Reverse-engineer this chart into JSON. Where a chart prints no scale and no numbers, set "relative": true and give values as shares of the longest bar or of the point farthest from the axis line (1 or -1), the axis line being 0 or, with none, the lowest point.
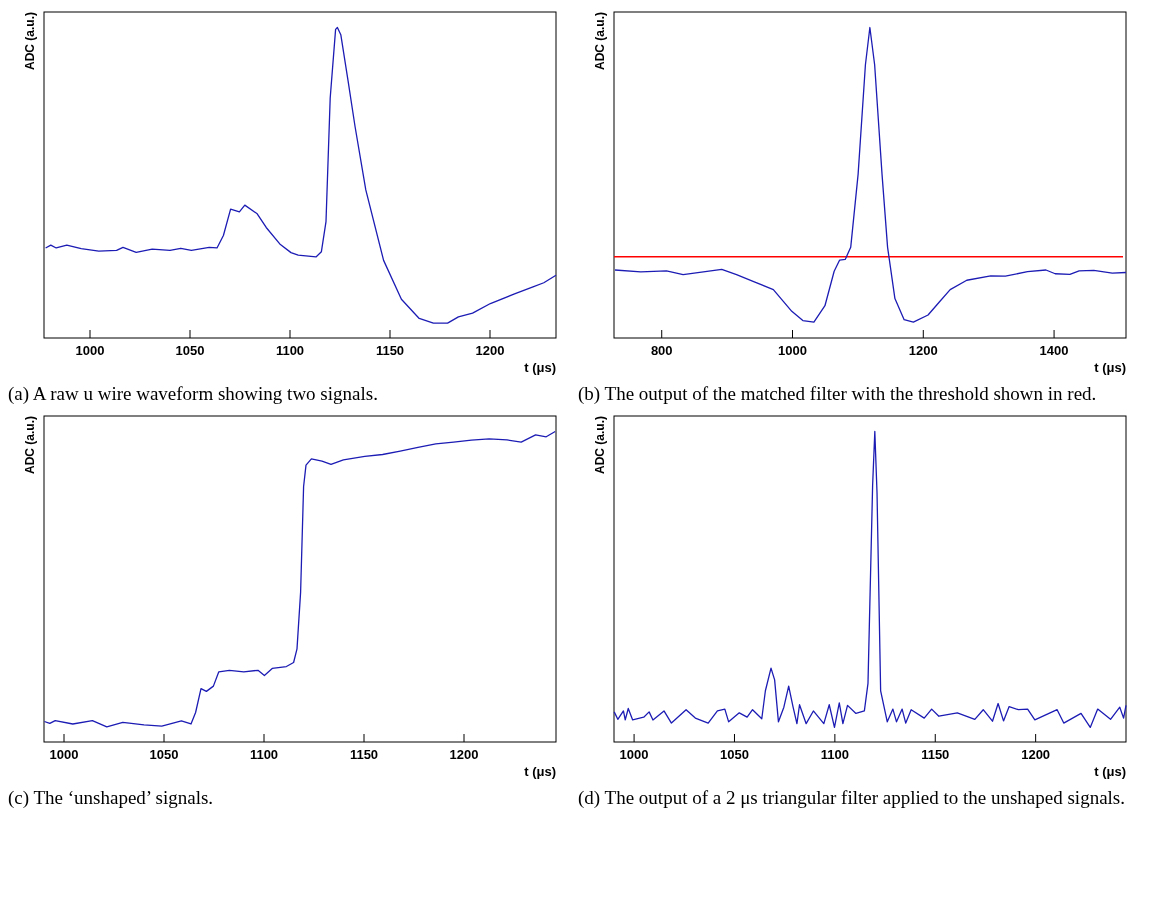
{
  "chart_data": [
    {
      "type": "line",
      "relative": true,
      "xlabel": "t (μs)",
      "ylabel": "ADC (a.u.)",
      "tick_labels": "x",
      "xlim": [
        977,
        1233
      ],
      "xticks": [
        1000,
        1050,
        1100,
        1150,
        1200
      ],
      "annotations": [
        "(a) A raw u wire waveform showing two signals."
      ],
      "series": [
        {
          "color": "#1c1cb4",
          "x": [
            977.8,
            980.4,
            983.1,
            988.4,
            995.6,
            1004.4,
            1013.3,
            1016.5,
            1023.1,
            1031.1,
            1040,
            1045.4,
            1050.7,
            1059.6,
            1063.5,
            1066.7,
            1070.3,
            1074.7,
            1077.4,
            1083.6,
            1088.1,
            1095.2,
            1100.5,
            1104.1,
            1113,
            1115.7,
            1118,
            1120.1,
            1122.8,
            1123.7,
            1125.4,
            1129,
            1132.5,
            1137.9,
            1146.8,
            1155.7,
            1164.6,
            1171.7,
            1178.8,
            1184.2,
            1191.3,
            1200.2,
            1212.6,
            1221.5,
            1226.9,
            1233
          ],
          "values": [
            0.29,
            0.299,
            0.29,
            0.299,
            0.288,
            0.28,
            0.282,
            0.292,
            0.276,
            0.286,
            0.282,
            0.289,
            0.282,
            0.292,
            0.29,
            0.33,
            0.415,
            0.406,
            0.428,
            0.4,
            0.356,
            0.301,
            0.275,
            0.267,
            0.261,
            0.278,
            0.375,
            0.773,
            0.994,
            1,
            0.977,
            0.83,
            0.682,
            0.477,
            0.25,
            0.125,
            0.063,
            0.048,
            0.048,
            0.068,
            0.08,
            0.111,
            0.143,
            0.165,
            0.178,
            0.202
          ]
        }
      ]
    },
    {
      "type": "line",
      "relative": true,
      "xlabel": "t (μs)",
      "ylabel": "ADC (a.u.)",
      "tick_labels": "x",
      "xlim": [
        727,
        1510
      ],
      "xticks": [
        800,
        1000,
        1200,
        1400
      ],
      "annotations": [
        "(b) The output of the matched filter with the threshold shown in red."
      ],
      "ref_lines": [
        {
          "axis": "y",
          "value": 0.262,
          "color": "#ff0000"
        }
      ],
      "series": [
        {
          "color": "#1c1cb4",
          "x": [
            728.5,
            767.9,
            807.3,
            832.7,
            863.7,
            891.8,
            914.4,
            942.5,
            970.7,
            998.9,
            1015.8,
            1032.7,
            1049.6,
            1063.7,
            1072.1,
            1080.6,
            1089,
            1100.3,
            1111.5,
            1118.3,
            1125.6,
            1136.9,
            1145.4,
            1156.6,
            1170.7,
            1184.8,
            1207.3,
            1224.2,
            1241.1,
            1266.5,
            1303.1,
            1325.6,
            1359.4,
            1387.6,
            1401.7,
            1424.2,
            1438.3,
            1460.8,
            1489,
            1509.9
          ],
          "values": [
            0.219,
            0.213,
            0.216,
            0.204,
            0.213,
            0.221,
            0.204,
            0.18,
            0.156,
            0.086,
            0.056,
            0.051,
            0.104,
            0.215,
            0.251,
            0.253,
            0.292,
            0.527,
            0.88,
            1,
            0.88,
            0.527,
            0.292,
            0.127,
            0.059,
            0.051,
            0.074,
            0.115,
            0.156,
            0.186,
            0.2,
            0.199,
            0.214,
            0.219,
            0.207,
            0.205,
            0.216,
            0.218,
            0.209,
            0.211
          ]
        }
      ]
    },
    {
      "type": "line",
      "relative": true,
      "xlabel": "t (μs)",
      "ylabel": "ADC (a.u.)",
      "tick_labels": "x",
      "xlim": [
        990,
        1246
      ],
      "xticks": [
        1000,
        1050,
        1100,
        1150,
        1200
      ],
      "annotations": [
        "(c) The ‘unshaped’ signals."
      ],
      "series": [
        {
          "color": "#1c1cb4",
          "x": [
            990.2,
            992.9,
            995.6,
            1004.4,
            1014.2,
            1021.4,
            1029.4,
            1040,
            1048.9,
            1058.7,
            1063.5,
            1065.8,
            1068.5,
            1071.2,
            1074.7,
            1077.4,
            1082.7,
            1089.9,
            1097,
            1100.2,
            1104.1,
            1111.2,
            1114.8,
            1116.5,
            1118.3,
            1119.8,
            1121,
            1123.7,
            1129,
            1133.5,
            1139.7,
            1150.4,
            1159.3,
            1168.1,
            1177,
            1185.9,
            1194.8,
            1203.7,
            1212.6,
            1221.5,
            1228.6,
            1235.8,
            1241.1,
            1245.6
          ],
          "values": [
            0.066,
            0.06,
            0.069,
            0.058,
            0.069,
            0.049,
            0.063,
            0.055,
            0.051,
            0.068,
            0.058,
            0.095,
            0.172,
            0.163,
            0.18,
            0.226,
            0.231,
            0.226,
            0.231,
            0.214,
            0.237,
            0.243,
            0.256,
            0.3,
            0.482,
            0.823,
            0.892,
            0.912,
            0.905,
            0.894,
            0.909,
            0.92,
            0.926,
            0.937,
            0.949,
            0.96,
            0.966,
            0.972,
            0.976,
            0.973,
            0.966,
            0.989,
            0.983,
            1
          ]
        }
      ]
    },
    {
      "type": "line",
      "relative": true,
      "xlabel": "t (μs)",
      "ylabel": "ADC (a.u.)",
      "tick_labels": "x",
      "xlim": [
        990,
        1245
      ],
      "xticks": [
        1000,
        1050,
        1100,
        1150,
        1200
      ],
      "annotations": [
        "(d) The output of a 2 μs triangular filter applied to the unshaped signals."
      ],
      "series": [
        {
          "color": "#1c1cb4",
          "x": [
            990.1,
            991.9,
            994.7,
            995.6,
            997.1,
            999.3,
            1004.8,
            1007.5,
            1009.4,
            1014.9,
            1018.6,
            1025.9,
            1030.5,
            1036.9,
            1041.5,
            1045.2,
            1047.1,
            1052.4,
            1056.3,
            1059,
            1063.6,
            1065.4,
            1068.2,
            1070,
            1071.9,
            1074.6,
            1077,
            1079.2,
            1081.1,
            1082.4,
            1085.7,
            1089.3,
            1094.5,
            1097.2,
            1099.8,
            1102.2,
            1104,
            1106.3,
            1110.5,
            1114.7,
            1116.5,
            1118.8,
            1119.9,
            1121,
            1122.8,
            1126.1,
            1128.9,
            1130.7,
            1133.5,
            1135.3,
            1138,
            1144.5,
            1148.2,
            1151.8,
            1161,
            1169.7,
            1173.9,
            1178.5,
            1181.3,
            1184,
            1186.8,
            1191.4,
            1196,
            1199.6,
            1210.7,
            1214,
            1222.6,
            1227.2,
            1230.9,
            1237.3,
            1241.9,
            1243.8,
            1245
          ],
          "values": [
            0.097,
            0.073,
            0.1,
            0.071,
            0.108,
            0.071,
            0.08,
            0.097,
            0.071,
            0.1,
            0.061,
            0.104,
            0.077,
            0.061,
            0.1,
            0.106,
            0.065,
            0.094,
            0.08,
            0.104,
            0.075,
            0.165,
            0.238,
            0.2,
            0.065,
            0.112,
            0.18,
            0.112,
            0.059,
            0.12,
            0.059,
            0.1,
            0.059,
            0.12,
            0.047,
            0.126,
            0.059,
            0.118,
            0.092,
            0.1,
            0.189,
            0.825,
            1,
            0.802,
            0.165,
            0.065,
            0.106,
            0.065,
            0.106,
            0.061,
            0.104,
            0.077,
            0.106,
            0.083,
            0.094,
            0.073,
            0.104,
            0.067,
            0.124,
            0.068,
            0.114,
            0.104,
            0.106,
            0.071,
            0.104,
            0.061,
            0.092,
            0.047,
            0.106,
            0.073,
            0.112,
            0.077,
            0.118
          ]
        }
      ]
    }
  ]
}
